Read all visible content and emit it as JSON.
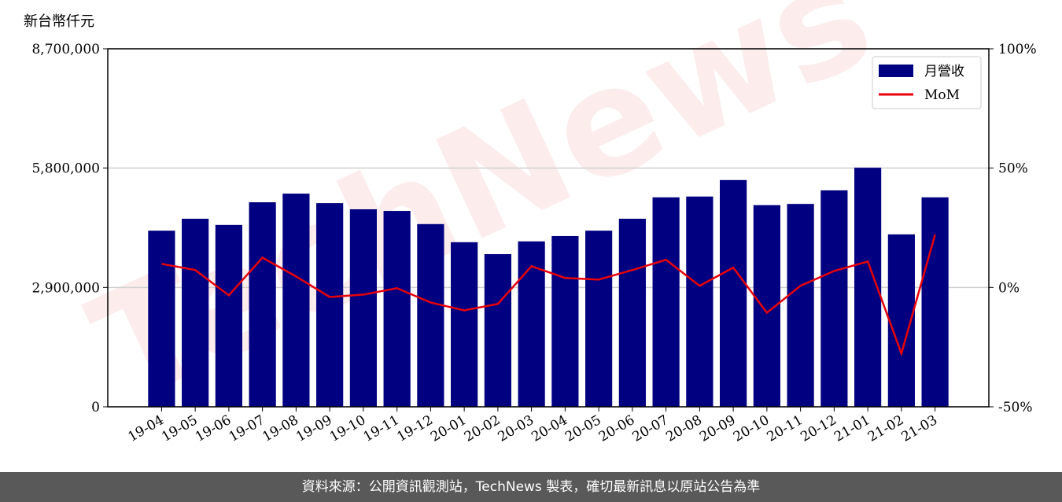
{
  "chart_data": {
    "type": "bar_line",
    "y_label": "新台幣仟元",
    "watermark": "TechNews",
    "footer": "資料來源：公開資訊觀測站，TechNews 製表，確切最新訊息以原站公告為準",
    "legend": "upper right",
    "grid": true,
    "categories": [
      "19-04",
      "19-05",
      "19-06",
      "19-07",
      "19-08",
      "19-09",
      "19-10",
      "19-11",
      "19-12",
      "20-01",
      "20-02",
      "20-03",
      "20-04",
      "20-05",
      "20-06",
      "20-07",
      "20-08",
      "20-09",
      "20-10",
      "20-11",
      "20-12",
      "21-01",
      "21-02",
      "21-03"
    ],
    "series": [
      {
        "name": "月營收",
        "type": "bar",
        "color": "#000080",
        "values": [
          4280000,
          4570000,
          4420000,
          4970000,
          5180000,
          4950000,
          4800000,
          4760000,
          4440000,
          4000000,
          3710000,
          4020000,
          4150000,
          4280000,
          4570000,
          5090000,
          5110000,
          5510000,
          4900000,
          4930000,
          5260000,
          5810000,
          4190000,
          5090000
        ]
      },
      {
        "name": "MoM",
        "type": "line",
        "axis": "y2",
        "color": "#e8000b",
        "values": [
          9.9,
          7.3,
          -3.3,
          12.5,
          4.6,
          -4.0,
          -3.0,
          -0.3,
          -6.3,
          -9.6,
          -6.9,
          8.9,
          4.0,
          3.3,
          7.3,
          11.6,
          0.7,
          8.3,
          -10.6,
          0.7,
          6.9,
          10.9,
          -27.7,
          22.1
        ]
      }
    ],
    "ylim": [
      0,
      8700000
    ],
    "yticks": [
      0,
      {
        "value": 2900000,
        "label": "2,900,000"
      },
      {
        "value": 5800000,
        "label": "5,800,000"
      },
      {
        "value": 8700000,
        "label": "8,700,000"
      }
    ],
    "y2lim": [
      -50,
      100
    ],
    "y2ticks": [
      {
        "value": -50,
        "label": "-50%"
      },
      {
        "value": 0,
        "label": "0%"
      },
      {
        "value": 50,
        "label": "50%"
      },
      {
        "value": 100,
        "label": "100%"
      }
    ]
  }
}
